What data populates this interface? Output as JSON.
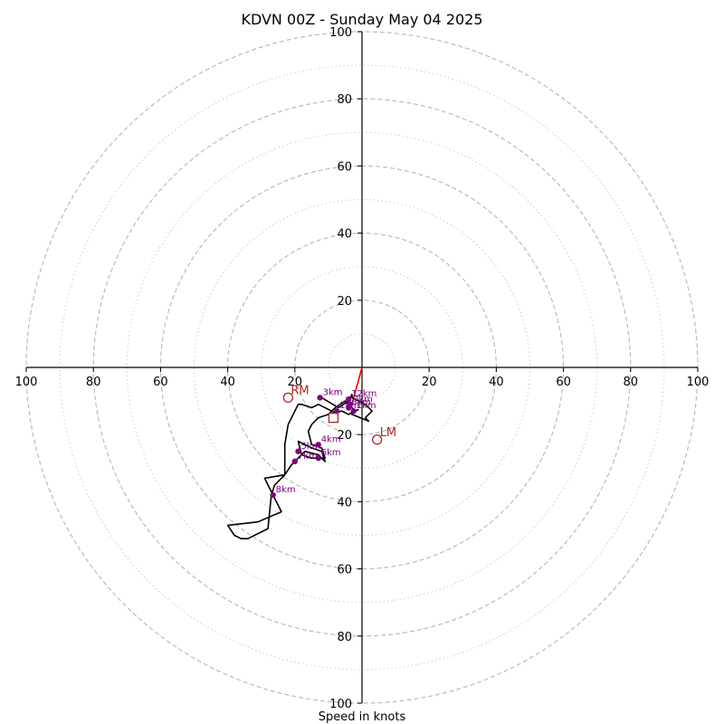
{
  "chart_data": {
    "type": "hodograph",
    "title": "KDVN 00Z - Sunday May 04 2025",
    "xlabel": "Speed in knots",
    "range": 100,
    "axis_ticks": [
      20,
      40,
      60,
      80,
      100
    ],
    "tick_labels": {
      "right": [
        "20",
        "40",
        "60",
        "80",
        "100"
      ],
      "left": [
        "20",
        "40",
        "60",
        "80",
        "100"
      ],
      "up": [
        "20",
        "40",
        "60",
        "80",
        "100"
      ],
      "down": [
        "20",
        "40",
        "60",
        "80",
        "100"
      ]
    },
    "rings_major": [
      20,
      40,
      60,
      80,
      100
    ],
    "rings_minor": [
      10,
      30,
      50,
      70,
      90
    ],
    "colors": {
      "hodograph": "#000000",
      "height_points": "#800080",
      "motion": "#b22222",
      "storm_vector": "#ff0000",
      "ring": "#bbbbbb",
      "axis": "#000000"
    },
    "hodograph_uv": [
      [
        -1,
        -12.5
      ],
      [
        -4,
        -14
      ],
      [
        -6,
        -13
      ],
      [
        -8,
        -13.5
      ],
      [
        -13,
        -11
      ],
      [
        -15,
        -12
      ],
      [
        -18,
        -11
      ],
      [
        -19,
        -11
      ],
      [
        -22,
        -17
      ],
      [
        -23,
        -23
      ],
      [
        -23,
        -32
      ],
      [
        -29,
        -33
      ],
      [
        -27,
        -37
      ],
      [
        -24,
        -43
      ],
      [
        -31,
        -46
      ],
      [
        -40,
        -47
      ],
      [
        -38,
        -50
      ],
      [
        -36,
        -51
      ],
      [
        -34,
        -51
      ],
      [
        -28,
        -48
      ],
      [
        -27,
        -38
      ],
      [
        -26,
        -35
      ],
      [
        -23,
        -32
      ],
      [
        -21,
        -29
      ],
      [
        -17,
        -25
      ],
      [
        -13,
        -26
      ],
      [
        -11,
        -28
      ],
      [
        -12,
        -25
      ],
      [
        -15,
        -24
      ],
      [
        -19,
        -22
      ],
      [
        -18,
        -26
      ],
      [
        -15,
        -27
      ],
      [
        -11,
        -27
      ],
      [
        -12,
        -24
      ],
      [
        -15,
        -23
      ],
      [
        -16,
        -19
      ],
      [
        -15,
        -17
      ],
      [
        -13,
        -15
      ],
      [
        -10,
        -14
      ],
      [
        -8,
        -12
      ],
      [
        -5,
        -10
      ],
      [
        -2,
        -13
      ],
      [
        -3,
        -14
      ],
      [
        2,
        -16
      ],
      [
        1,
        -15
      ],
      [
        3,
        -13
      ],
      [
        1,
        -11
      ],
      [
        -3,
        -9
      ],
      [
        -3,
        -8
      ],
      [
        -4,
        -10
      ],
      [
        -7,
        -12
      ],
      [
        -12,
        -9
      ]
    ],
    "height_points": [
      {
        "label": "3km",
        "u": -12.5,
        "v": -9
      },
      {
        "label": "12km",
        "u": -4,
        "v": -9.5
      },
      {
        "label": "7km",
        "u": -3.5,
        "v": -11
      },
      {
        "label": "6km",
        "u": -4,
        "v": -12
      },
      {
        "label": "1km",
        "u": -2.5,
        "v": -13
      },
      {
        "label": "1km",
        "u": -7.5,
        "v": -13
      },
      {
        "label": "4km",
        "u": -13,
        "v": -23
      },
      {
        "label": "5km",
        "u": -19,
        "v": -25
      },
      {
        "label": "6km",
        "u": -13,
        "v": -27
      },
      {
        "label": "7km",
        "u": -20,
        "v": -28
      },
      {
        "label": "8km",
        "u": -26.5,
        "v": -38
      }
    ],
    "storm_motion": {
      "right_mover": {
        "label": "RM",
        "u": -22,
        "v": -9
      },
      "left_mover": {
        "label": "LM",
        "u": 4.5,
        "v": -21.5
      },
      "mean_wind": {
        "u": -8.5,
        "v": -15
      }
    },
    "shear_vector_end": {
      "u": -3,
      "v": -11
    }
  }
}
